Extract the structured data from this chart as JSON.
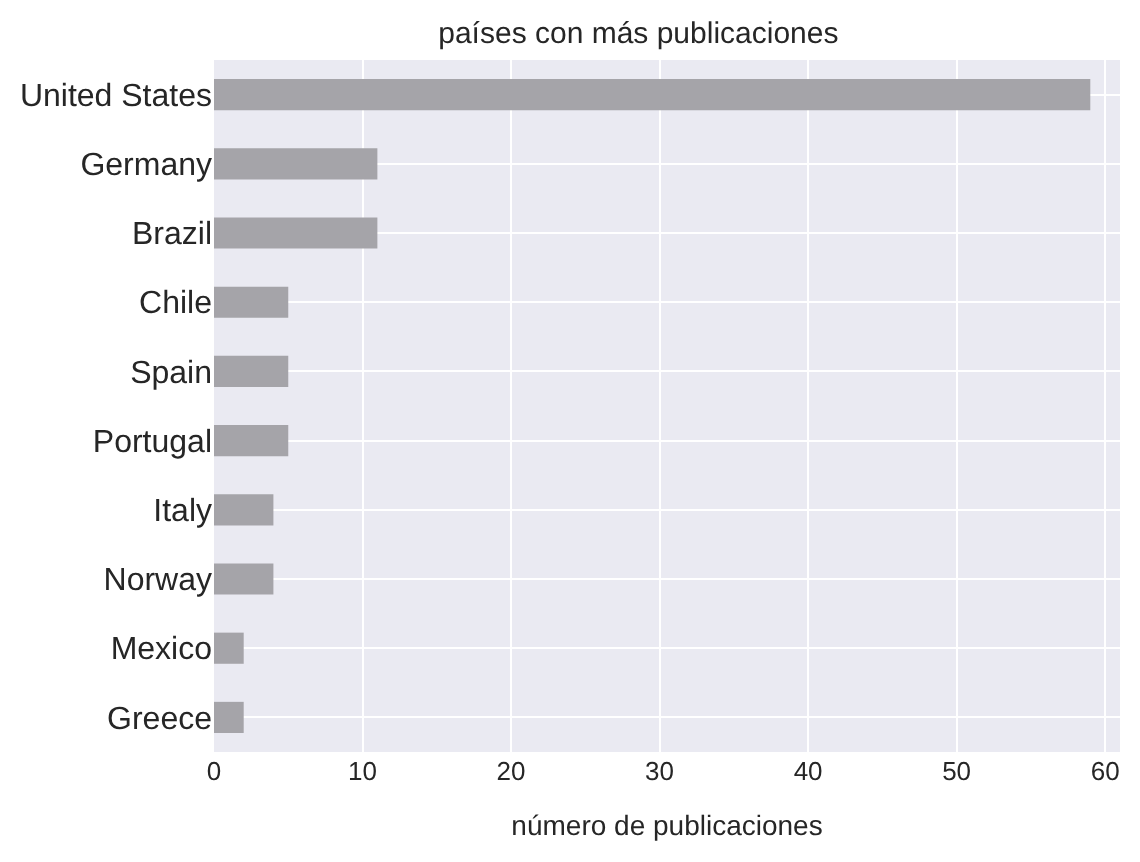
{
  "chart_data": {
    "type": "bar",
    "orientation": "horizontal",
    "title": "países con más publicaciones",
    "xlabel": "número de publicaciones",
    "categories": [
      "United States",
      "Germany",
      "Brazil",
      "Chile",
      "Spain",
      "Portugal",
      "Italy",
      "Norway",
      "Mexico",
      "Greece"
    ],
    "values": [
      59,
      11,
      11,
      5,
      5,
      5,
      4,
      4,
      2,
      2
    ],
    "color": "#a5a4a9",
    "xlim": [
      0,
      61
    ],
    "xticks": [
      0,
      10,
      20,
      30,
      40,
      50,
      60
    ],
    "grid": true
  }
}
